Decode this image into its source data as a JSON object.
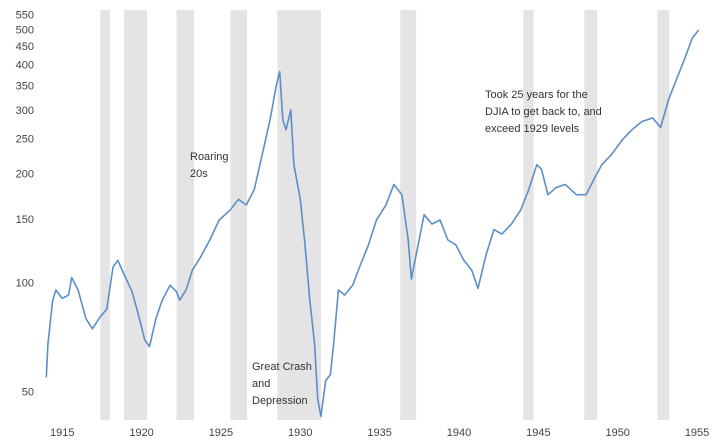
{
  "chart_data": {
    "type": "line",
    "log_scale": true,
    "grid": false,
    "x": [
      1914.0,
      1914.1,
      1914.4,
      1914.6,
      1915.0,
      1915.4,
      1915.6,
      1916.0,
      1916.5,
      1916.9,
      1917.4,
      1917.8,
      1918.2,
      1918.5,
      1918.9,
      1919.4,
      1919.8,
      1920.2,
      1920.5,
      1920.9,
      1921.3,
      1921.8,
      1922.2,
      1922.4,
      1922.8,
      1923.2,
      1923.7,
      1924.3,
      1924.9,
      1925.6,
      1926.1,
      1926.6,
      1927.1,
      1927.6,
      1928.1,
      1928.5,
      1928.7,
      1928.9,
      1929.1,
      1929.4,
      1929.6,
      1930.0,
      1930.3,
      1930.6,
      1930.9,
      1931.1,
      1931.3,
      1931.6,
      1931.9,
      1932.1,
      1932.4,
      1932.8,
      1933.3,
      1933.8,
      1934.3,
      1934.8,
      1935.4,
      1935.9,
      1936.4,
      1936.8,
      1937.0,
      1937.3,
      1937.8,
      1938.3,
      1938.8,
      1939.3,
      1939.8,
      1940.3,
      1940.8,
      1941.2,
      1941.7,
      1942.2,
      1942.7,
      1943.3,
      1943.9,
      1944.4,
      1944.9,
      1945.2,
      1945.6,
      1946.1,
      1946.7,
      1947.4,
      1948.0,
      1948.5,
      1949.0,
      1949.6,
      1950.3,
      1950.9,
      1951.5,
      1952.2,
      1952.7,
      1953.2,
      1953.7,
      1954.2,
      1954.7,
      1955.1
    ],
    "series": [
      {
        "color": "#5b8fc7",
        "values": [
          55,
          68,
          90,
          96,
          91,
          93,
          104,
          96,
          80,
          75,
          81,
          85,
          111,
          116,
          106,
          95,
          82,
          70,
          67,
          80,
          90,
          99,
          95,
          90,
          96,
          109,
          118,
          132,
          150,
          160,
          171,
          165,
          182,
          227,
          284,
          355,
          385,
          284,
          266,
          302,
          213,
          171,
          128,
          90,
          68,
          48,
          43,
          54,
          56,
          68,
          96,
          93,
          99,
          113,
          128,
          150,
          165,
          188,
          176,
          132,
          103,
          120,
          155,
          146,
          150,
          132,
          128,
          116,
          109,
          97,
          120,
          141,
          137,
          146,
          160,
          182,
          213,
          207,
          176,
          184,
          188,
          176,
          176,
          194,
          213,
          227,
          250,
          266,
          280,
          287,
          270,
          322,
          366,
          416,
          477,
          502
        ]
      }
    ],
    "shaded_periods": [
      [
        1917.4,
        1918.0
      ],
      [
        1918.9,
        1920.35
      ],
      [
        1922.2,
        1923.3
      ],
      [
        1925.6,
        1926.65
      ],
      [
        1928.55,
        1931.3
      ],
      [
        1936.3,
        1937.3
      ],
      [
        1944.05,
        1944.7
      ],
      [
        1947.9,
        1948.7
      ],
      [
        1952.5,
        1953.25
      ]
    ],
    "shade_color": "#e4e4e4",
    "xlim": [
      1913.6,
      1955.5
    ],
    "xticks": [
      1915,
      1920,
      1925,
      1930,
      1935,
      1940,
      1945,
      1950,
      1955
    ],
    "ylim": [
      42,
      570
    ],
    "yticks": [
      50,
      100,
      150,
      200,
      250,
      300,
      350,
      400,
      450,
      500,
      550
    ],
    "annotations": [
      [
        "Roaring",
        "20s"
      ],
      [
        "Great Crash",
        "and",
        "Depression"
      ],
      [
        "Took 25 years for the",
        "DJIA to get back to, and",
        "exceed 1929 levels"
      ]
    ]
  }
}
